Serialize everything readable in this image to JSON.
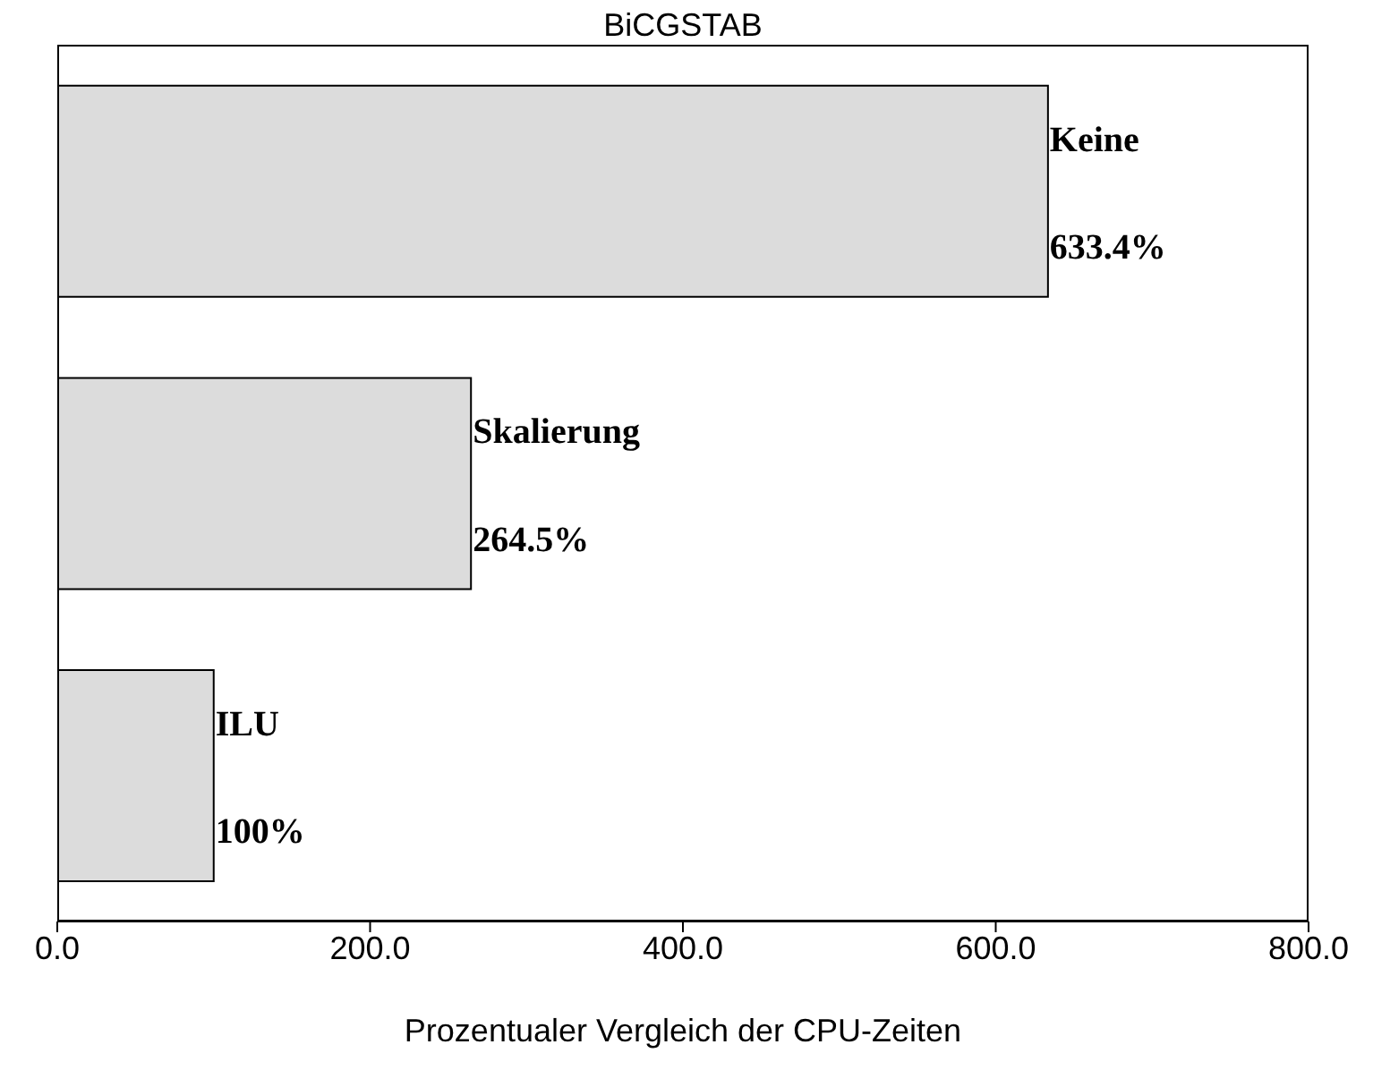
{
  "chart_data": {
    "type": "bar",
    "orientation": "horizontal",
    "title": "BiCGSTAB",
    "xlabel": "Prozentualer Vergleich der CPU-Zeiten",
    "categories": [
      "Keine",
      "Skalierung",
      "ILU"
    ],
    "values": [
      633.4,
      264.5,
      100
    ],
    "value_labels": [
      "633.4%",
      "264.5%",
      "100%"
    ],
    "color": "#dcdcdc",
    "xlim": [
      0,
      800
    ],
    "xticks": [
      {
        "value": 0,
        "label": "0.0"
      },
      {
        "value": 200,
        "label": "200.0"
      },
      {
        "value": 400,
        "label": "400.0"
      },
      {
        "value": 600,
        "label": "600.0"
      },
      {
        "value": 800,
        "label": "800.0"
      }
    ],
    "tick_labels": "x",
    "grid": false
  }
}
